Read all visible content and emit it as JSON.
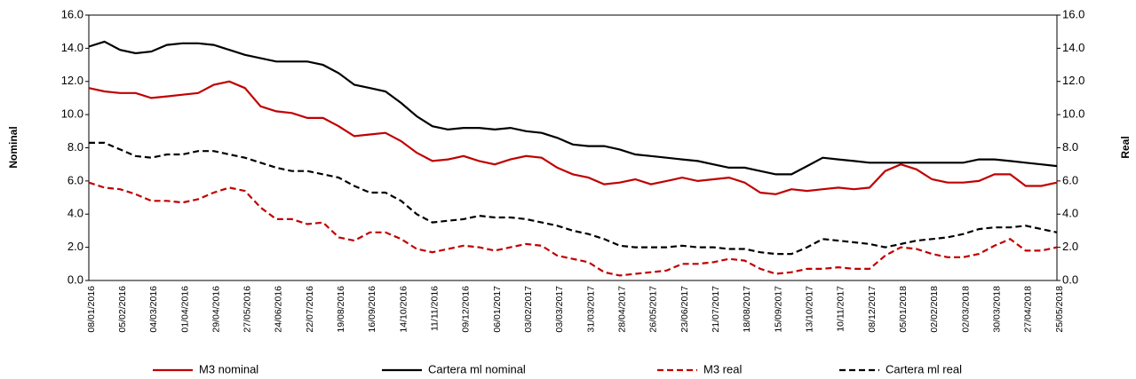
{
  "chart_data": {
    "type": "line",
    "ylabel": "Nominal",
    "y2label": "Real",
    "categories": [
      "08/01/2016",
      null,
      "05/02/2016",
      null,
      "04/03/2016",
      null,
      "01/04/2016",
      null,
      "29/04/2016",
      null,
      "27/05/2016",
      null,
      "24/06/2016",
      null,
      "22/07/2016",
      null,
      "19/08/2016",
      null,
      "16/09/2016",
      null,
      "14/10/2016",
      null,
      "11/11/2016",
      null,
      "09/12/2016",
      null,
      "06/01/2017",
      null,
      "03/02/2017",
      null,
      "03/03/2017",
      null,
      "31/03/2017",
      null,
      "28/04/2017",
      null,
      "26/05/2017",
      null,
      "23/06/2017",
      null,
      "21/07/2017",
      null,
      "18/08/2017",
      null,
      "15/09/2017",
      null,
      "13/10/2017",
      null,
      "10/11/2017",
      null,
      "08/12/2017",
      null,
      "05/01/2018",
      null,
      "02/02/2018",
      null,
      "02/03/2018",
      null,
      "30/03/2018",
      null,
      "27/04/2018",
      null,
      "25/05/2018"
    ],
    "series": [
      {
        "name": "M3 nominal",
        "color": "#c00000",
        "dashed": false,
        "values": [
          11.6,
          11.4,
          11.3,
          11.3,
          11.0,
          11.1,
          11.2,
          11.3,
          11.8,
          12.0,
          11.6,
          10.5,
          10.2,
          10.1,
          9.8,
          9.8,
          9.3,
          8.7,
          8.8,
          8.9,
          8.4,
          7.7,
          7.2,
          7.3,
          7.5,
          7.2,
          7.0,
          7.3,
          7.5,
          7.4,
          6.8,
          6.4,
          6.2,
          5.8,
          5.9,
          6.1,
          5.8,
          6.0,
          6.2,
          6.0,
          6.1,
          6.2,
          5.9,
          5.3,
          5.2,
          5.5,
          5.4,
          5.5,
          5.6,
          5.5,
          5.6,
          6.6,
          7.0,
          6.7,
          6.1,
          5.9,
          5.9,
          6.0,
          6.4,
          6.4,
          5.7,
          5.7,
          5.9
        ]
      },
      {
        "name": "Cartera ml nominal",
        "color": "#000000",
        "dashed": false,
        "values": [
          14.1,
          14.4,
          13.9,
          13.7,
          13.8,
          14.2,
          14.3,
          14.3,
          14.2,
          13.9,
          13.6,
          13.4,
          13.2,
          13.2,
          13.2,
          13.0,
          12.5,
          11.8,
          11.6,
          11.4,
          10.7,
          9.9,
          9.3,
          9.1,
          9.2,
          9.2,
          9.1,
          9.2,
          9.0,
          8.9,
          8.6,
          8.2,
          8.1,
          8.1,
          7.9,
          7.6,
          7.5,
          7.4,
          7.3,
          7.2,
          7.0,
          6.8,
          6.8,
          6.6,
          6.4,
          6.4,
          6.9,
          7.4,
          7.3,
          7.2,
          7.1,
          7.1,
          7.1,
          7.1,
          7.1,
          7.1,
          7.1,
          7.3,
          7.3,
          7.2,
          7.1,
          7.0,
          6.9
        ]
      },
      {
        "name": "M3 real",
        "color": "#c00000",
        "dashed": true,
        "axis": "y2",
        "values": [
          5.9,
          5.6,
          5.5,
          5.2,
          4.8,
          4.8,
          4.7,
          4.9,
          5.3,
          5.6,
          5.4,
          4.4,
          3.7,
          3.7,
          3.4,
          3.5,
          2.6,
          2.4,
          2.9,
          2.9,
          2.5,
          1.9,
          1.7,
          1.9,
          2.1,
          2.0,
          1.8,
          2.0,
          2.2,
          2.1,
          1.5,
          1.3,
          1.1,
          0.5,
          0.3,
          0.4,
          0.5,
          0.6,
          1.0,
          1.0,
          1.1,
          1.3,
          1.2,
          0.7,
          0.4,
          0.5,
          0.7,
          0.7,
          0.8,
          0.7,
          0.7,
          1.5,
          2.0,
          1.9,
          1.6,
          1.4,
          1.4,
          1.6,
          2.1,
          2.5,
          1.8,
          1.8,
          2.0
        ]
      },
      {
        "name": "Cartera ml real",
        "color": "#000000",
        "dashed": true,
        "axis": "y2",
        "values": [
          8.3,
          8.3,
          7.9,
          7.5,
          7.4,
          7.6,
          7.6,
          7.8,
          7.8,
          7.6,
          7.4,
          7.1,
          6.8,
          6.6,
          6.6,
          6.4,
          6.2,
          5.7,
          5.3,
          5.3,
          4.8,
          4.0,
          3.5,
          3.6,
          3.7,
          3.9,
          3.8,
          3.8,
          3.7,
          3.5,
          3.3,
          3.0,
          2.8,
          2.5,
          2.1,
          2.0,
          2.0,
          2.0,
          2.1,
          2.0,
          2.0,
          1.9,
          1.9,
          1.7,
          1.6,
          1.6,
          2.0,
          2.5,
          2.4,
          2.3,
          2.2,
          2.0,
          2.2,
          2.4,
          2.5,
          2.6,
          2.8,
          3.1,
          3.2,
          3.2,
          3.3,
          3.1,
          2.9
        ]
      }
    ],
    "ylim": [
      0,
      16
    ],
    "yticks": [
      {
        "value": 0,
        "label": "0.0"
      },
      {
        "value": 2,
        "label": "2.0"
      },
      {
        "value": 4,
        "label": "4.0"
      },
      {
        "value": 6,
        "label": "6.0"
      },
      {
        "value": 8,
        "label": "8.0"
      },
      {
        "value": 10,
        "label": "10.0"
      },
      {
        "value": 12,
        "label": "12.0"
      },
      {
        "value": 14,
        "label": "14.0"
      },
      {
        "value": 16,
        "label": "16.0"
      }
    ],
    "y2lim": [
      0,
      16
    ],
    "y2ticks": [
      {
        "value": 0,
        "label": "0.0"
      },
      {
        "value": 2,
        "label": "2.0"
      },
      {
        "value": 4,
        "label": "4.0"
      },
      {
        "value": 6,
        "label": "6.0"
      },
      {
        "value": 8,
        "label": "8.0"
      },
      {
        "value": 10,
        "label": "10.0"
      },
      {
        "value": 12,
        "label": "12.0"
      },
      {
        "value": 14,
        "label": "14.0"
      },
      {
        "value": 16,
        "label": "16.0"
      }
    ],
    "legend": "bottom"
  }
}
